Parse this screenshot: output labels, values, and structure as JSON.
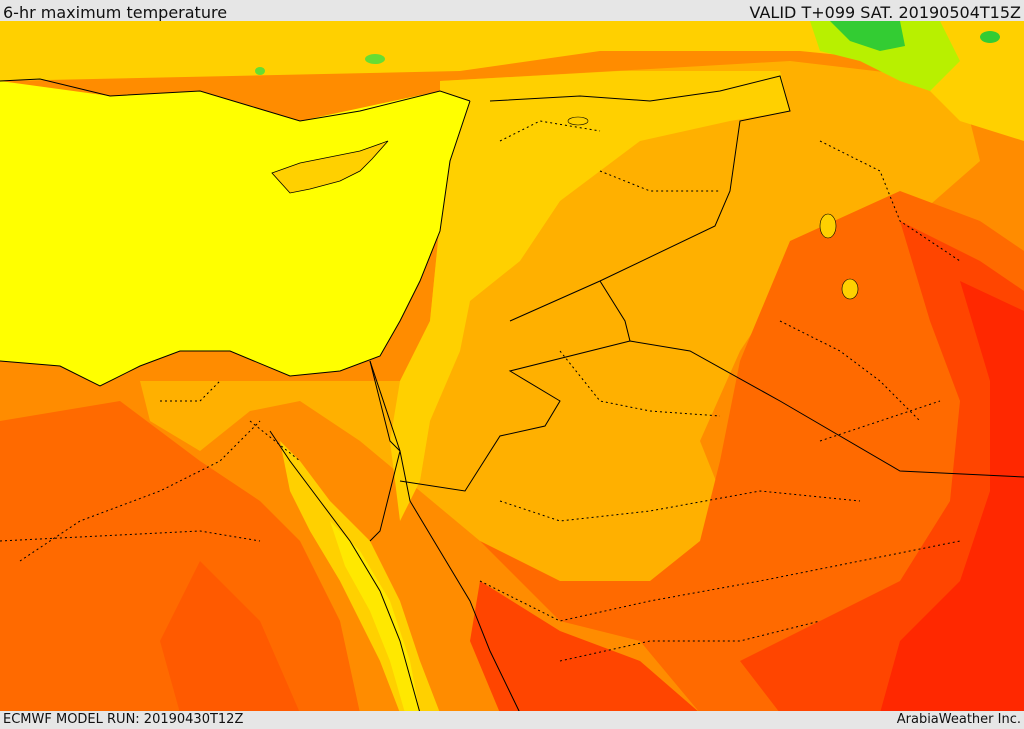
{
  "header": {
    "title": "6-hr maximum temperature",
    "valid_time": "VALID T+099 SAT. 20190504T15Z"
  },
  "footer": {
    "model_run": "ECMWF MODEL RUN: 20190430T12Z",
    "credit": "ArabiaWeather Inc."
  },
  "colors": {
    "cool_green": "#33cc33",
    "light_green": "#b8f000",
    "yellow": "#ffff00",
    "gold": "#ffd000",
    "amber": "#ffb000",
    "orange": "#ff8c00",
    "dark_orange": "#ff6a00",
    "red_orange": "#ff4500",
    "red": "#ff2800"
  }
}
